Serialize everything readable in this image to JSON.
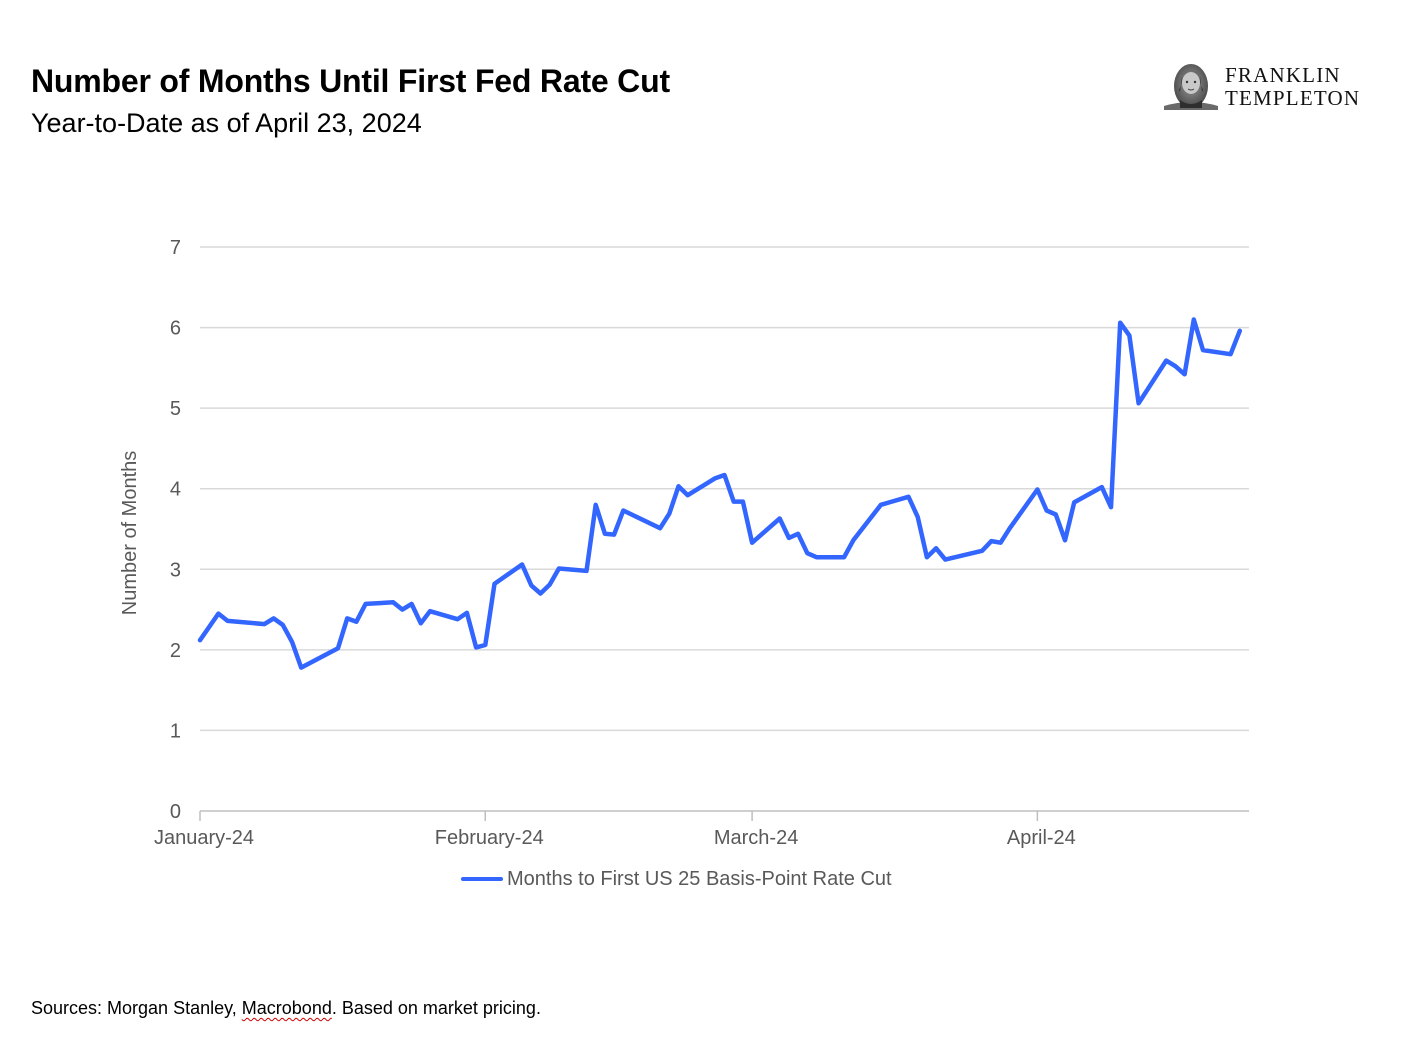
{
  "header": {
    "title": "Number of Months Until First Fed Rate Cut",
    "subtitle": "Year-to-Date as of April 23, 2024"
  },
  "logo": {
    "line1": "FRANKLIN",
    "line2": "TEMPLETON",
    "icon": "benjamin-franklin-portrait-icon"
  },
  "footer": {
    "prefix": "Sources: Morgan Stanley, ",
    "underlined": "Macrobond",
    "suffix": ". Based on market pricing."
  },
  "colors": {
    "series": "#3366ff",
    "grid": "#d9d9d9",
    "axis": "#bfbfbf",
    "text_muted": "#595959"
  },
  "chart_data": {
    "type": "line",
    "title": "Number of Months Until First Fed Rate Cut",
    "subtitle": "Year-to-Date as of April 23, 2024",
    "xlabel": "",
    "ylabel": "Number of Months",
    "ylim": [
      0,
      7
    ],
    "yticks": [
      0,
      1,
      2,
      3,
      4,
      5,
      6,
      7
    ],
    "xticks": [
      {
        "label": "January-24",
        "date": "2024-01-01"
      },
      {
        "label": "February-24",
        "date": "2024-02-01"
      },
      {
        "label": "March-24",
        "date": "2024-03-01"
      },
      {
        "label": "April-24",
        "date": "2024-04-01"
      }
    ],
    "xlim": [
      "2024-01-01",
      "2024-04-24"
    ],
    "grid": true,
    "legend_position": "bottom",
    "series": [
      {
        "name": "Months to First US 25 Basis-Point Rate Cut",
        "color": "#3366ff",
        "points": [
          [
            "2024-01-01",
            2.12
          ],
          [
            "2024-01-03",
            2.45
          ],
          [
            "2024-01-04",
            2.36
          ],
          [
            "2024-01-08",
            2.32
          ],
          [
            "2024-01-09",
            2.39
          ],
          [
            "2024-01-10",
            2.31
          ],
          [
            "2024-01-11",
            2.1
          ],
          [
            "2024-01-12",
            1.78
          ],
          [
            "2024-01-16",
            2.02
          ],
          [
            "2024-01-17",
            2.39
          ],
          [
            "2024-01-18",
            2.35
          ],
          [
            "2024-01-19",
            2.57
          ],
          [
            "2024-01-22",
            2.59
          ],
          [
            "2024-01-23",
            2.5
          ],
          [
            "2024-01-24",
            2.57
          ],
          [
            "2024-01-25",
            2.33
          ],
          [
            "2024-01-26",
            2.48
          ],
          [
            "2024-01-29",
            2.38
          ],
          [
            "2024-01-30",
            2.46
          ],
          [
            "2024-01-31",
            2.03
          ],
          [
            "2024-02-01",
            2.06
          ],
          [
            "2024-02-02",
            2.82
          ],
          [
            "2024-02-05",
            3.06
          ],
          [
            "2024-02-06",
            2.8
          ],
          [
            "2024-02-07",
            2.7
          ],
          [
            "2024-02-08",
            2.81
          ],
          [
            "2024-02-09",
            3.01
          ],
          [
            "2024-02-12",
            2.98
          ],
          [
            "2024-02-13",
            3.8
          ],
          [
            "2024-02-14",
            3.44
          ],
          [
            "2024-02-15",
            3.43
          ],
          [
            "2024-02-16",
            3.73
          ],
          [
            "2024-02-20",
            3.51
          ],
          [
            "2024-02-21",
            3.69
          ],
          [
            "2024-02-22",
            4.03
          ],
          [
            "2024-02-23",
            3.92
          ],
          [
            "2024-02-26",
            4.13
          ],
          [
            "2024-02-27",
            4.17
          ],
          [
            "2024-02-28",
            3.84
          ],
          [
            "2024-02-29",
            3.84
          ],
          [
            "2024-03-01",
            3.33
          ],
          [
            "2024-03-04",
            3.63
          ],
          [
            "2024-03-05",
            3.39
          ],
          [
            "2024-03-06",
            3.44
          ],
          [
            "2024-03-07",
            3.2
          ],
          [
            "2024-03-08",
            3.15
          ],
          [
            "2024-03-11",
            3.15
          ],
          [
            "2024-03-12",
            3.36
          ],
          [
            "2024-03-15",
            3.8
          ],
          [
            "2024-03-18",
            3.9
          ],
          [
            "2024-03-19",
            3.65
          ],
          [
            "2024-03-20",
            3.15
          ],
          [
            "2024-03-21",
            3.26
          ],
          [
            "2024-03-22",
            3.12
          ],
          [
            "2024-03-26",
            3.23
          ],
          [
            "2024-03-27",
            3.35
          ],
          [
            "2024-03-28",
            3.33
          ],
          [
            "2024-03-29",
            3.51
          ],
          [
            "2024-04-01",
            3.99
          ],
          [
            "2024-04-02",
            3.73
          ],
          [
            "2024-04-03",
            3.68
          ],
          [
            "2024-04-04",
            3.36
          ],
          [
            "2024-04-05",
            3.83
          ],
          [
            "2024-04-08",
            4.02
          ],
          [
            "2024-04-09",
            3.77
          ],
          [
            "2024-04-10",
            6.06
          ],
          [
            "2024-04-11",
            5.9
          ],
          [
            "2024-04-12",
            5.06
          ],
          [
            "2024-04-15",
            5.59
          ],
          [
            "2024-04-16",
            5.52
          ],
          [
            "2024-04-17",
            5.42
          ],
          [
            "2024-04-18",
            6.1
          ],
          [
            "2024-04-19",
            5.72
          ],
          [
            "2024-04-22",
            5.67
          ],
          [
            "2024-04-23",
            5.96
          ]
        ]
      }
    ]
  }
}
